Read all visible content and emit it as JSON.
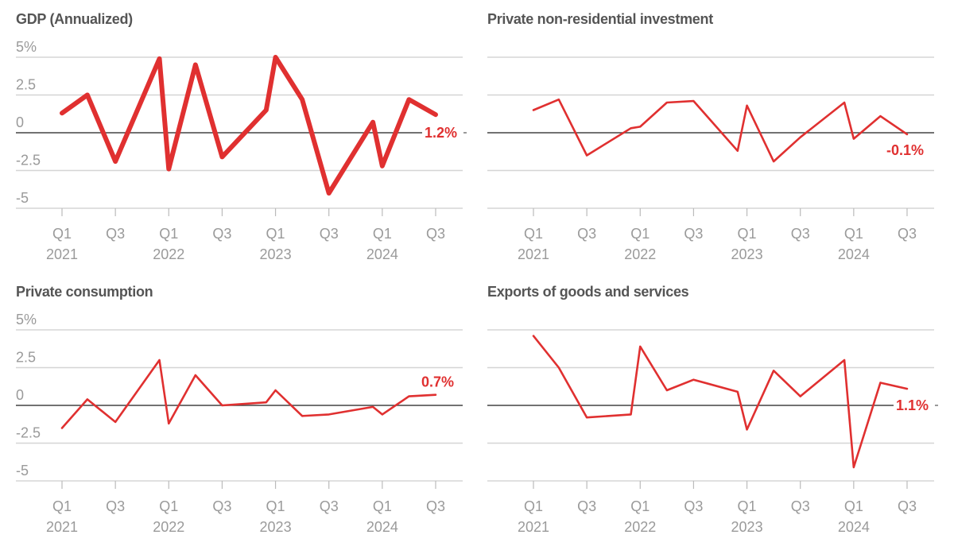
{
  "colors": {
    "series": "#e03030",
    "title": "#555555",
    "axis_text": "#9a9a9a"
  },
  "chart_data": [
    {
      "type": "line",
      "id": "gdp",
      "title": "GDP (Annualized)",
      "xlabel": "",
      "ylabel": "",
      "ylim": [
        -5,
        5
      ],
      "yticks": [
        5,
        2.5,
        0,
        -2.5,
        -5
      ],
      "ytick_labels": [
        "5%",
        "2.5",
        "0",
        "-2.5",
        "-5"
      ],
      "show_ytick_labels": true,
      "xticks": [
        0,
        2,
        4,
        6,
        8,
        10,
        12,
        14
      ],
      "xtick_labels": [
        [
          "Q1",
          "2021"
        ],
        [
          "Q3",
          ""
        ],
        [
          "Q1",
          "2022"
        ],
        [
          "Q3",
          ""
        ],
        [
          "Q1",
          "2023"
        ],
        [
          "Q3",
          ""
        ],
        [
          "Q1",
          "2024"
        ],
        [
          "Q3",
          ""
        ]
      ],
      "grid": true,
      "emphasis": "thick",
      "x": [
        0,
        0.95,
        2,
        3.65,
        4,
        5,
        6,
        7.65,
        8,
        9,
        10,
        11.65,
        12,
        13,
        14
      ],
      "values": [
        1.3,
        2.5,
        -1.9,
        4.9,
        -2.4,
        4.5,
        -1.6,
        1.5,
        5.0,
        2.2,
        -4.0,
        0.7,
        -2.2,
        2.2,
        1.2
      ],
      "end_label": "1.2%",
      "end_label_position": "right"
    },
    {
      "type": "line",
      "id": "investment",
      "title": "Private non-residential investment",
      "xlabel": "",
      "ylabel": "",
      "ylim": [
        -5,
        5
      ],
      "yticks": [
        5,
        2.5,
        0,
        -2.5,
        -5
      ],
      "ytick_labels": [
        "",
        "",
        "",
        "",
        ""
      ],
      "show_ytick_labels": false,
      "xticks": [
        0,
        2,
        4,
        6,
        8,
        10,
        12,
        14
      ],
      "xtick_labels": [
        [
          "Q1",
          "2021"
        ],
        [
          "Q3",
          ""
        ],
        [
          "Q1",
          "2022"
        ],
        [
          "Q3",
          ""
        ],
        [
          "Q1",
          "2023"
        ],
        [
          "Q3",
          ""
        ],
        [
          "Q1",
          "2024"
        ],
        [
          "Q3",
          ""
        ]
      ],
      "grid": true,
      "emphasis": "normal",
      "x": [
        0,
        0.95,
        2,
        3.65,
        4,
        5,
        6,
        7.65,
        8,
        9,
        10,
        11.65,
        12,
        13,
        14
      ],
      "values": [
        1.5,
        2.2,
        -1.5,
        0.3,
        0.4,
        2.0,
        2.1,
        -1.2,
        1.8,
        -1.9,
        -0.3,
        2.0,
        -0.4,
        1.1,
        -0.1
      ],
      "end_label": "-0.1%",
      "end_label_position": "below"
    },
    {
      "type": "line",
      "id": "consumption",
      "title": "Private consumption",
      "xlabel": "",
      "ylabel": "",
      "ylim": [
        -5,
        5
      ],
      "yticks": [
        5,
        2.5,
        0,
        -2.5,
        -5
      ],
      "ytick_labels": [
        "5%",
        "2.5",
        "0",
        "-2.5",
        "-5"
      ],
      "show_ytick_labels": true,
      "xticks": [
        0,
        2,
        4,
        6,
        8,
        10,
        12,
        14
      ],
      "xtick_labels": [
        [
          "Q1",
          "2021"
        ],
        [
          "Q3",
          ""
        ],
        [
          "Q1",
          "2022"
        ],
        [
          "Q3",
          ""
        ],
        [
          "Q1",
          "2023"
        ],
        [
          "Q3",
          ""
        ],
        [
          "Q1",
          "2024"
        ],
        [
          "Q3",
          ""
        ]
      ],
      "grid": true,
      "emphasis": "normal",
      "x": [
        0,
        0.95,
        2,
        3.65,
        4,
        5,
        6,
        7.65,
        8,
        9,
        10,
        11.65,
        12,
        13,
        14
      ],
      "values": [
        -1.5,
        0.4,
        -1.1,
        3.0,
        -1.2,
        2.0,
        0.0,
        0.2,
        1.0,
        -0.7,
        -0.6,
        -0.1,
        -0.6,
        0.6,
        0.7
      ],
      "end_label": "0.7%",
      "end_label_position": "above"
    },
    {
      "type": "line",
      "id": "exports",
      "title": "Exports of goods and services",
      "xlabel": "",
      "ylabel": "",
      "ylim": [
        -5,
        5
      ],
      "yticks": [
        5,
        2.5,
        0,
        -2.5,
        -5
      ],
      "ytick_labels": [
        "",
        "",
        "",
        "",
        ""
      ],
      "show_ytick_labels": false,
      "xticks": [
        0,
        2,
        4,
        6,
        8,
        10,
        12,
        14
      ],
      "xtick_labels": [
        [
          "Q1",
          "2021"
        ],
        [
          "Q3",
          ""
        ],
        [
          "Q1",
          "2022"
        ],
        [
          "Q3",
          ""
        ],
        [
          "Q1",
          "2023"
        ],
        [
          "Q3",
          ""
        ],
        [
          "Q1",
          "2024"
        ],
        [
          "Q3",
          ""
        ]
      ],
      "grid": true,
      "emphasis": "normal",
      "x": [
        0,
        0.95,
        2,
        3.65,
        4,
        5,
        6,
        7.65,
        8,
        9,
        10,
        11.65,
        12,
        13,
        14
      ],
      "values": [
        4.6,
        2.5,
        -0.8,
        -0.6,
        3.9,
        1.0,
        1.7,
        0.9,
        -1.6,
        2.3,
        0.6,
        3.0,
        -4.1,
        1.5,
        1.1
      ],
      "end_label": "1.1%",
      "end_label_position": "right"
    }
  ]
}
